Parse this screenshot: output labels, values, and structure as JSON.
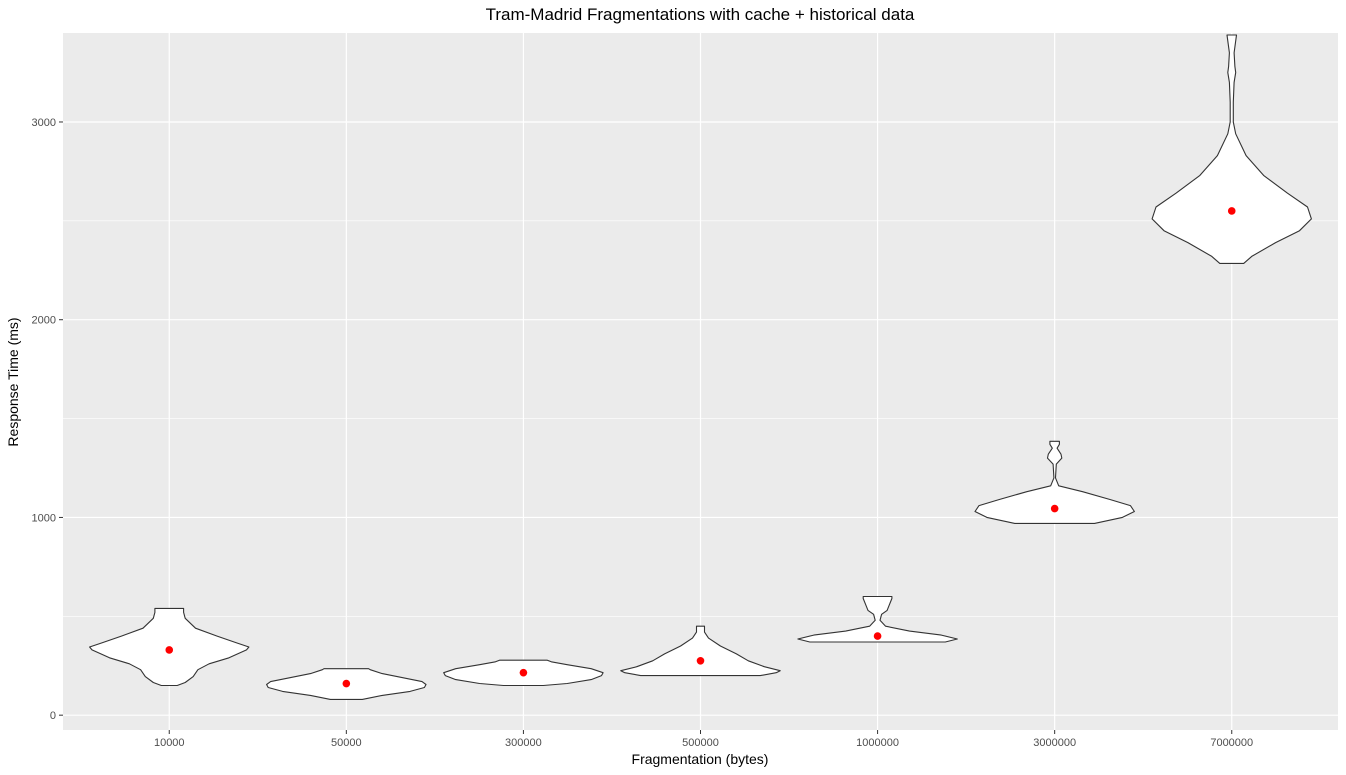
{
  "chart_data": {
    "type": "violin",
    "title": "Tram-Madrid Fragmentations with cache + historical data",
    "xlabel": "Fragmentation (bytes)",
    "ylabel": "Response Time (ms)",
    "ylim": [
      -75,
      3450
    ],
    "yticks": [
      0,
      1000,
      2000,
      3000
    ],
    "grid": true,
    "colors": {
      "panel": "#ebebeb",
      "grid": "#ffffff",
      "violin_fill": "#ffffff",
      "violin_stroke": "#333333",
      "mean_point": "#ff0000"
    },
    "categories": [
      "10000",
      "50000",
      "300000",
      "500000",
      "1000000",
      "3000000",
      "7000000"
    ],
    "violins": [
      {
        "category": "10000",
        "mean": 330,
        "profile": [
          [
            150,
            0.1
          ],
          [
            165,
            0.2
          ],
          [
            195,
            0.3
          ],
          [
            230,
            0.36
          ],
          [
            260,
            0.5
          ],
          [
            290,
            0.75
          ],
          [
            330,
            0.97
          ],
          [
            345,
            1.0
          ],
          [
            365,
            0.85
          ],
          [
            400,
            0.6
          ],
          [
            440,
            0.33
          ],
          [
            490,
            0.2
          ],
          [
            520,
            0.18
          ],
          [
            540,
            0.18
          ]
        ]
      },
      {
        "category": "50000",
        "mean": 160,
        "profile": [
          [
            80,
            0.2
          ],
          [
            100,
            0.45
          ],
          [
            120,
            0.8
          ],
          [
            140,
            0.98
          ],
          [
            155,
            1.0
          ],
          [
            170,
            0.95
          ],
          [
            190,
            0.7
          ],
          [
            210,
            0.45
          ],
          [
            230,
            0.3
          ],
          [
            235,
            0.28
          ]
        ]
      },
      {
        "category": "300000",
        "mean": 215,
        "profile": [
          [
            150,
            0.25
          ],
          [
            160,
            0.55
          ],
          [
            180,
            0.85
          ],
          [
            200,
            0.98
          ],
          [
            215,
            1.0
          ],
          [
            235,
            0.85
          ],
          [
            255,
            0.55
          ],
          [
            270,
            0.35
          ],
          [
            278,
            0.3
          ]
        ]
      },
      {
        "category": "500000",
        "mean": 275,
        "profile": [
          [
            200,
            0.75
          ],
          [
            215,
            0.95
          ],
          [
            225,
            1.0
          ],
          [
            245,
            0.8
          ],
          [
            275,
            0.6
          ],
          [
            310,
            0.45
          ],
          [
            350,
            0.25
          ],
          [
            390,
            0.1
          ],
          [
            420,
            0.05
          ],
          [
            450,
            0.05
          ]
        ]
      },
      {
        "category": "1000000",
        "mean": 400,
        "profile": [
          [
            370,
            0.85
          ],
          [
            385,
            1.0
          ],
          [
            405,
            0.8
          ],
          [
            425,
            0.4
          ],
          [
            450,
            0.1
          ],
          [
            480,
            0.03
          ],
          [
            510,
            0.05
          ],
          [
            530,
            0.12
          ],
          [
            560,
            0.15
          ],
          [
            590,
            0.18
          ],
          [
            600,
            0.18
          ]
        ]
      },
      {
        "category": "3000000",
        "mean": 1045,
        "profile": [
          [
            970,
            0.5
          ],
          [
            1000,
            0.85
          ],
          [
            1030,
            1.0
          ],
          [
            1060,
            0.95
          ],
          [
            1090,
            0.7
          ],
          [
            1130,
            0.35
          ],
          [
            1160,
            0.05
          ],
          [
            1200,
            0.01
          ],
          [
            1270,
            0.02
          ],
          [
            1300,
            0.09
          ],
          [
            1320,
            0.08
          ],
          [
            1350,
            0.03
          ],
          [
            1370,
            0.06
          ],
          [
            1385,
            0.06
          ]
        ]
      },
      {
        "category": "7000000",
        "mean": 2550,
        "profile": [
          [
            2285,
            0.15
          ],
          [
            2320,
            0.25
          ],
          [
            2390,
            0.55
          ],
          [
            2450,
            0.85
          ],
          [
            2510,
            1.0
          ],
          [
            2570,
            0.95
          ],
          [
            2640,
            0.7
          ],
          [
            2730,
            0.4
          ],
          [
            2830,
            0.18
          ],
          [
            2940,
            0.05
          ],
          [
            3000,
            0.02
          ],
          [
            3100,
            0.02
          ],
          [
            3200,
            0.03
          ],
          [
            3250,
            0.05
          ],
          [
            3280,
            0.04
          ],
          [
            3350,
            0.03
          ],
          [
            3440,
            0.06
          ]
        ]
      }
    ]
  }
}
